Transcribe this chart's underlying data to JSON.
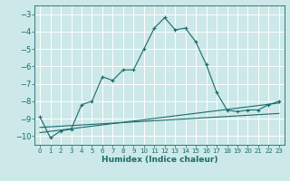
{
  "xlabel": "Humidex (Indice chaleur)",
  "background_color": "#cce8e8",
  "grid_color": "#ffffff",
  "line_color": "#1a6b6b",
  "xlim": [
    -0.5,
    23.5
  ],
  "ylim": [
    -10.5,
    -2.5
  ],
  "yticks": [
    -10,
    -9,
    -8,
    -7,
    -6,
    -5,
    -4,
    -3
  ],
  "xticks": [
    0,
    1,
    2,
    3,
    4,
    5,
    6,
    7,
    8,
    9,
    10,
    11,
    12,
    13,
    14,
    15,
    16,
    17,
    18,
    19,
    20,
    21,
    22,
    23
  ],
  "main_line_x": [
    0,
    1,
    2,
    3,
    4,
    5,
    6,
    7,
    8,
    9,
    10,
    11,
    12,
    13,
    14,
    15,
    16,
    17,
    18,
    19,
    20,
    21,
    22,
    23
  ],
  "main_line_y": [
    -8.9,
    -10.1,
    -9.7,
    -9.6,
    -8.2,
    -8.0,
    -6.6,
    -6.8,
    -6.2,
    -6.2,
    -5.0,
    -3.8,
    -3.2,
    -3.9,
    -3.8,
    -4.6,
    -5.9,
    -7.5,
    -8.5,
    -8.6,
    -8.5,
    -8.5,
    -8.2,
    -8.0
  ],
  "ref_line1_x": [
    0,
    23
  ],
  "ref_line1_y": [
    -9.8,
    -8.1
  ],
  "ref_line2_x": [
    0,
    23
  ],
  "ref_line2_y": [
    -9.5,
    -8.7
  ]
}
